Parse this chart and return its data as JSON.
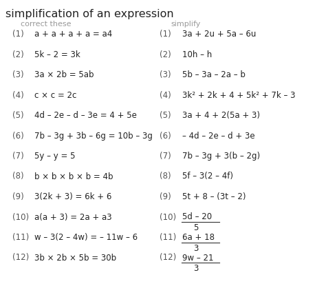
{
  "title": "simplification of an expression",
  "title_fontsize": 11.5,
  "subtitle_left": "correct these",
  "subtitle_right": "simplify",
  "subtitle_fontsize": 8,
  "subtitle_color": "#999999",
  "text_fontsize": 8.5,
  "num_color": "#555555",
  "bg_color": "#ffffff",
  "left_items": [
    {
      "num": "(1)",
      "text": "a + a + a + a = a4"
    },
    {
      "num": "(2)",
      "text": "5k – 2 = 3k"
    },
    {
      "num": "(3)",
      "text": "3a × 2b = 5ab"
    },
    {
      "num": "(4)",
      "text": "c × c = 2c"
    },
    {
      "num": "(5)",
      "text": "4d – 2e – d – 3e = 4 + 5e"
    },
    {
      "num": "(6)",
      "text": "7b – 3g + 3b – 6g = 10b – 3g"
    },
    {
      "num": "(7)",
      "text": "5y – y = 5"
    },
    {
      "num": "(8)",
      "text": "b × b × b × b = 4b"
    },
    {
      "num": "(9)",
      "text": "3(2k + 3) = 6k + 6"
    },
    {
      "num": "(10)",
      "text": "a(a + 3) = 2a + a3"
    },
    {
      "num": "(11)",
      "text": "w – 3(2 – 4w) = – 11w – 6"
    },
    {
      "num": "(12)",
      "text": "3b × 2b × 5b = 30b"
    }
  ],
  "right_items": [
    {
      "num": "(1)",
      "text": "3a + 2u + 5a – 6u",
      "fraction": false
    },
    {
      "num": "(2)",
      "text": "10h – h",
      "fraction": false
    },
    {
      "num": "(3)",
      "text": "5b – 3a – 2a – b",
      "fraction": false
    },
    {
      "num": "(4)",
      "text": "3k² + 2k + 4 + 5k² + 7k – 3",
      "fraction": false
    },
    {
      "num": "(5)",
      "text": "3a + 4 + 2(5a + 3)",
      "fraction": false
    },
    {
      "num": "(6)",
      "text": "– 4d – 2e – d + 3e",
      "fraction": false
    },
    {
      "num": "(7)",
      "text": "7b – 3g + 3(b – 2g)",
      "fraction": false
    },
    {
      "num": "(8)",
      "text": "5f – 3(2 – 4f)",
      "fraction": false
    },
    {
      "num": "(9)",
      "text": "5t + 8 – (3t – 2)",
      "fraction": false
    },
    {
      "num": "(10)",
      "numerator": "5d – 20",
      "denominator": "5",
      "fraction": true
    },
    {
      "num": "(11)",
      "numerator": "6a + 18",
      "denominator": "3",
      "fraction": true
    },
    {
      "num": "(12)",
      "numerator": "9w – 21",
      "denominator": "3",
      "fraction": true
    }
  ]
}
